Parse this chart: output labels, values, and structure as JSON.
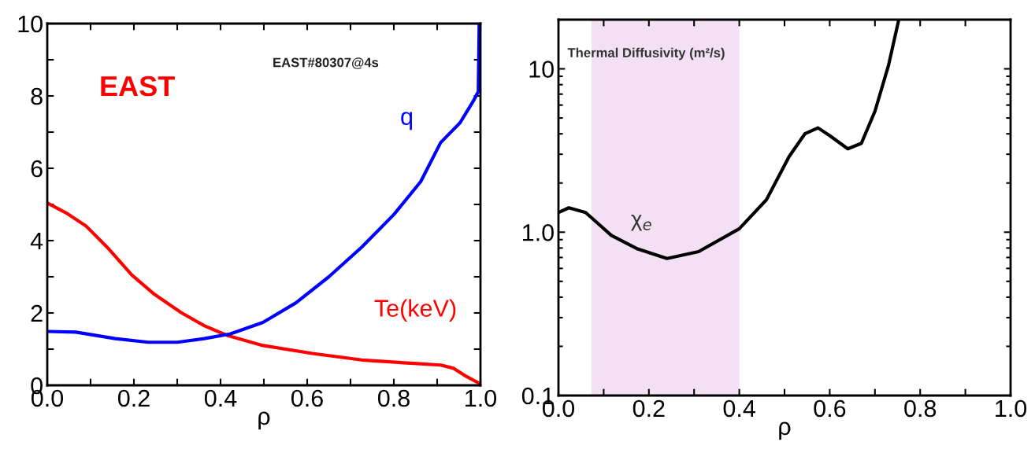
{
  "chart_data": [
    {
      "type": "line",
      "xlabel": "ρ",
      "xlim": [
        0,
        1
      ],
      "xticks": [
        {
          "value": 0,
          "label": "0.0"
        },
        {
          "value": 0.1,
          "label": null
        },
        {
          "value": 0.2,
          "label": "0.2"
        },
        {
          "value": 0.3,
          "label": null
        },
        {
          "value": 0.4,
          "label": "0.4"
        },
        {
          "value": 0.5,
          "label": null
        },
        {
          "value": 0.6,
          "label": "0.6"
        },
        {
          "value": 0.7,
          "label": null
        },
        {
          "value": 0.8,
          "label": "0.8"
        },
        {
          "value": 0.9,
          "label": null
        },
        {
          "value": 1,
          "label": "1.0"
        }
      ],
      "ylim": [
        0,
        10
      ],
      "yticks": [
        0,
        {
          "value": 1,
          "label": null
        },
        2,
        {
          "value": 3,
          "label": null
        },
        4,
        {
          "value": 5,
          "label": null
        },
        6,
        {
          "value": 7,
          "label": null
        },
        8,
        {
          "value": 9,
          "label": null
        },
        10
      ],
      "annotations": [
        "EAST",
        "EAST#80307@4s"
      ],
      "series": [
        {
          "name": "Te(keV)",
          "color": "#ff0000",
          "x": [
            0,
            0.043,
            0.089,
            0.142,
            0.195,
            0.248,
            0.309,
            0.362,
            0.415,
            0.498,
            0.612,
            0.726,
            0.839,
            0.908,
            0.938,
            0.968,
            0.998
          ],
          "values": [
            5.04,
            4.77,
            4.41,
            3.77,
            3.05,
            2.51,
            2.01,
            1.65,
            1.38,
            1.1,
            0.88,
            0.7,
            0.61,
            0.56,
            0.47,
            0.24,
            0.05
          ]
        },
        {
          "name": "q",
          "color": "#0000ff",
          "x": [
            0,
            0.066,
            0.157,
            0.233,
            0.3,
            0.362,
            0.422,
            0.498,
            0.574,
            0.65,
            0.726,
            0.8,
            0.862,
            0.908,
            0.953,
            0.983,
            0.995,
            0.997
          ],
          "values": [
            1.49,
            1.47,
            1.29,
            1.19,
            1.19,
            1.29,
            1.42,
            1.74,
            2.28,
            3.0,
            3.82,
            4.72,
            5.63,
            6.71,
            7.26,
            7.85,
            8.12,
            10.0
          ]
        }
      ]
    },
    {
      "type": "line",
      "xlabel": "ρ",
      "log": "y",
      "xlim": [
        0,
        1
      ],
      "xticks": [
        {
          "value": 0,
          "label": "0.0"
        },
        {
          "value": 0.1,
          "label": null
        },
        {
          "value": 0.2,
          "label": "0.2"
        },
        {
          "value": 0.3,
          "label": null
        },
        {
          "value": 0.4,
          "label": "0.4"
        },
        {
          "value": 0.5,
          "label": null
        },
        {
          "value": 0.6,
          "label": "0.6"
        },
        {
          "value": 0.7,
          "label": null
        },
        {
          "value": 0.8,
          "label": "0.8"
        },
        {
          "value": 0.9,
          "label": null
        },
        {
          "value": 1,
          "label": "1.0"
        }
      ],
      "ylim": [
        0.1,
        20
      ],
      "yticks": [
        {
          "value": 0.1,
          "label": "0.1"
        },
        {
          "value": 1,
          "label": "1.0"
        },
        10
      ],
      "bands": [
        {
          "axis": "x",
          "from": 0.073,
          "to": 0.4,
          "label": null,
          "color": "#f3e0f5"
        }
      ],
      "annotations": [
        "Thermal Diffusivity (m²/s)",
        "χ$_{e}$"
      ],
      "series": [
        {
          "color": "#000000",
          "x": [
            0,
            0.023,
            0.06,
            0.117,
            0.175,
            0.24,
            0.31,
            0.4,
            0.46,
            0.51,
            0.545,
            0.574,
            0.6,
            0.64,
            0.67,
            0.7,
            0.73,
            0.752
          ],
          "values": [
            1.32,
            1.41,
            1.32,
            0.955,
            0.79,
            0.69,
            0.76,
            1.05,
            1.58,
            2.9,
            4.0,
            4.35,
            3.9,
            3.24,
            3.5,
            5.5,
            10.5,
            19.6
          ]
        }
      ]
    }
  ]
}
